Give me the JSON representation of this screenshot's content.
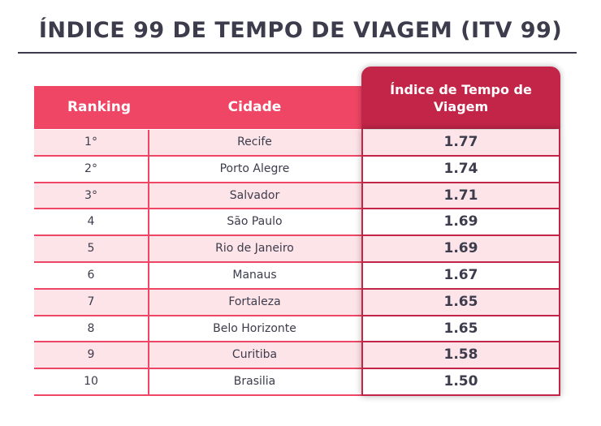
{
  "title": "ÍNDICE 99 DE TEMPO DE VIAGEM (ITV 99)",
  "colors": {
    "header": "#ef4665",
    "header_dark": "#c22548",
    "row_alt": "#fde4e8",
    "text": "#3c3c4c"
  },
  "chart_data": {
    "type": "table",
    "title": "ÍNDICE 99 DE TEMPO DE VIAGEM (ITV 99)",
    "columns": [
      "Ranking",
      "Cidade",
      "Índice de Tempo de Viagem"
    ],
    "rows": [
      {
        "rank": "1°",
        "city": "Recife",
        "index": "1.77"
      },
      {
        "rank": "2°",
        "city": "Porto Alegre",
        "index": "1.74"
      },
      {
        "rank": "3°",
        "city": "Salvador",
        "index": "1.71"
      },
      {
        "rank": "4",
        "city": "São Paulo",
        "index": "1.69"
      },
      {
        "rank": "5",
        "city": "Rio de Janeiro",
        "index": "1.69"
      },
      {
        "rank": "6",
        "city": "Manaus",
        "index": "1.67"
      },
      {
        "rank": "7",
        "city": "Fortaleza",
        "index": "1.65"
      },
      {
        "rank": "8",
        "city": "Belo Horizonte",
        "index": "1.65"
      },
      {
        "rank": "9",
        "city": "Curitiba",
        "index": "1.58"
      },
      {
        "rank": "10",
        "city": "Brasilia",
        "index": "1.50"
      }
    ]
  }
}
